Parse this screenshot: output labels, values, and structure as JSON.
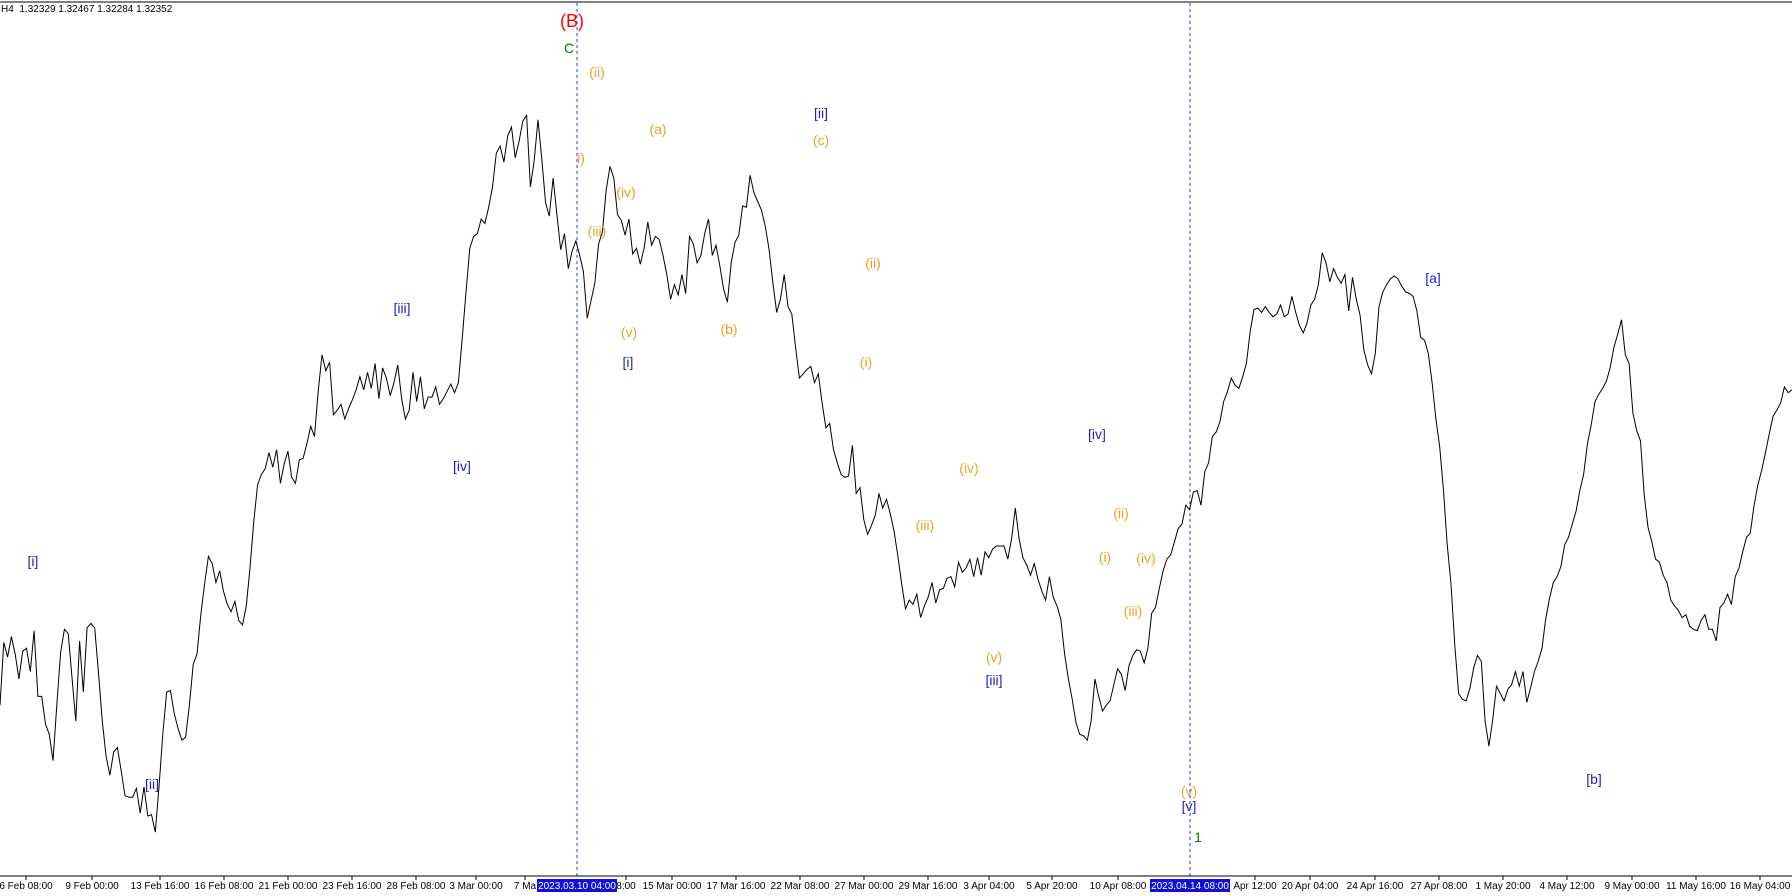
{
  "header": {
    "timeframe": "H4",
    "ohlc": "1.32329 1.32467 1.32284 1.32352"
  },
  "colors": {
    "price_line": "#000000",
    "vertical_line": "#1f3fd6",
    "axis_highlight": "#1010d8",
    "wave_red": "#ff0000",
    "wave_green": "#008000",
    "wave_blue": "#1f1fd0",
    "wave_orange": "#f0a020"
  },
  "chart_data": {
    "type": "line",
    "title": "",
    "series": [
      {
        "values": [
          1.2217,
          1.226,
          1.225,
          1.2264,
          1.2252,
          1.2235,
          1.2254,
          1.2256,
          1.224,
          1.2268,
          1.2223,
          1.2223,
          1.2204,
          1.2197,
          1.2179,
          1.2217,
          1.2253,
          1.2269,
          1.2266,
          1.2236,
          1.2206,
          1.2261,
          1.2226,
          1.227,
          1.2273,
          1.227,
          1.2239,
          1.2206,
          1.2182,
          1.2169,
          1.2185,
          1.2188,
          1.2172,
          1.2155,
          1.2154,
          1.2154,
          1.216,
          1.2143,
          1.2161,
          1.2141,
          1.2142,
          1.213,
          1.2162,
          1.2198,
          1.2226,
          1.2227,
          1.2211,
          1.2201,
          1.2193,
          1.2195,
          1.2217,
          1.2245,
          1.2252,
          1.2279,
          1.23,
          1.2319,
          1.2314,
          1.2301,
          1.2309,
          1.2295,
          1.2286,
          1.2281,
          1.2288,
          1.2275,
          1.2272,
          1.2285,
          1.2311,
          1.2343,
          1.2368,
          1.2375,
          1.2379,
          1.239,
          1.238,
          1.2392,
          1.2369,
          1.2382,
          1.2391,
          1.2373,
          1.2369,
          1.2385,
          1.2386,
          1.2396,
          1.2408,
          1.2401,
          1.2432,
          1.2457,
          1.2446,
          1.2452,
          1.2416,
          1.2419,
          1.2423,
          1.2413,
          1.242,
          1.2426,
          1.2433,
          1.2442,
          1.2433,
          1.2445,
          1.2434,
          1.2451,
          1.2427,
          1.2448,
          1.2441,
          1.2429,
          1.2438,
          1.245,
          1.2427,
          1.2413,
          1.2419,
          1.2445,
          1.2425,
          1.2442,
          1.242,
          1.2428,
          1.2428,
          1.2435,
          1.2423,
          1.2427,
          1.2432,
          1.2437,
          1.2431,
          1.2438,
          1.2468,
          1.25,
          1.253,
          1.2538,
          1.254,
          1.255,
          1.2547,
          1.2558,
          1.2572,
          1.2595,
          1.26,
          1.2589,
          1.2607,
          1.2613,
          1.2592,
          1.2603,
          1.2617,
          1.2621,
          1.2572,
          1.259,
          1.2618,
          1.2591,
          1.2561,
          1.2552,
          1.2578,
          1.2553,
          1.2529,
          1.254,
          1.2516,
          1.2528,
          1.2535,
          1.2525,
          1.2514,
          1.2482,
          1.2494,
          1.2506,
          1.2533,
          1.2541,
          1.257,
          1.2586,
          1.2578,
          1.2553,
          1.2549,
          1.2539,
          1.255,
          1.2526,
          1.253,
          1.2519,
          1.253,
          1.2548,
          1.2532,
          1.2538,
          1.2536,
          1.2525,
          1.2512,
          1.2495,
          1.2505,
          1.2498,
          1.2512,
          1.2499,
          1.2538,
          1.2533,
          1.252,
          1.2525,
          1.254,
          1.255,
          1.2525,
          1.2532,
          1.2518,
          1.2502,
          1.2493,
          1.252,
          1.2534,
          1.2539,
          1.2559,
          1.2558,
          1.258,
          1.2568,
          1.2562,
          1.2556,
          1.2545,
          1.2529,
          1.2506,
          1.2486,
          1.2495,
          1.2512,
          1.249,
          1.2485,
          1.2462,
          1.2441,
          1.2444,
          1.2447,
          1.2449,
          1.2438,
          1.2444,
          1.2424,
          1.2407,
          1.241,
          1.2392,
          1.2383,
          1.2375,
          1.2373,
          1.2374,
          1.2395,
          1.2362,
          1.2366,
          1.2344,
          1.2334,
          1.234,
          1.2347,
          1.2362,
          1.2352,
          1.2358,
          1.2348,
          1.2336,
          1.2319,
          1.23,
          1.2283,
          1.2289,
          1.2286,
          1.2293,
          1.2277,
          1.2285,
          1.2291,
          1.2301,
          1.2287,
          1.2296,
          1.2297,
          1.2304,
          1.2305,
          1.2298,
          1.2315,
          1.2308,
          1.2311,
          1.2317,
          1.2305,
          1.2318,
          1.2306,
          1.2322,
          1.2318,
          1.2324,
          1.2326,
          1.2326,
          1.2326,
          1.2317,
          1.2331,
          1.2352,
          1.2331,
          1.2318,
          1.2313,
          1.2306,
          1.2314,
          1.2303,
          1.2295,
          1.2289,
          1.2305,
          1.2291,
          1.2285,
          1.2276,
          1.2252,
          1.2235,
          1.2221,
          1.2205,
          1.2197,
          1.2196,
          1.2193,
          1.2206,
          1.2235,
          1.2223,
          1.2213,
          1.2217,
          1.222,
          1.2231,
          1.2242,
          1.2238,
          1.2227,
          1.2244,
          1.2251,
          1.2255,
          1.2254,
          1.2246,
          1.2256,
          1.228,
          1.2284,
          1.2297,
          1.2309,
          1.2317,
          1.232,
          1.2329,
          1.2338,
          1.2341,
          1.2354,
          1.2351,
          1.2363,
          1.2364,
          1.2354,
          1.2377,
          1.2383,
          1.2401,
          1.2404,
          1.2411,
          1.2425,
          1.2432,
          1.2441,
          1.2436,
          1.2434,
          1.2442,
          1.2451,
          1.2473,
          1.2488,
          1.2489,
          1.2486,
          1.249,
          1.2486,
          1.2483,
          1.2485,
          1.2491,
          1.2483,
          1.2485,
          1.2497,
          1.2486,
          1.2477,
          1.2472,
          1.2479,
          1.2491,
          1.2495,
          1.2505,
          1.2527,
          1.252,
          1.2507,
          1.2516,
          1.251,
          1.2506,
          1.2512,
          1.2487,
          1.251,
          1.2495,
          1.2484,
          1.246,
          1.245,
          1.2444,
          1.2458,
          1.249,
          1.25,
          1.2505,
          1.2509,
          1.2511,
          1.2509,
          1.2504,
          1.25,
          1.2499,
          1.2497,
          1.2487,
          1.2469,
          1.2467,
          1.2458,
          1.2438,
          1.2413,
          1.2394,
          1.2364,
          1.2327,
          1.23,
          1.2258,
          1.2225,
          1.2221,
          1.222,
          1.2229,
          1.2243,
          1.2251,
          1.2247,
          1.2206,
          1.2189,
          1.2207,
          1.223,
          1.2225,
          1.222,
          1.2228,
          1.2231,
          1.224,
          1.223,
          1.224,
          1.2219,
          1.2229,
          1.224,
          1.2247,
          1.2256,
          1.2276,
          1.229,
          1.2301,
          1.2305,
          1.2312,
          1.2327,
          1.2332,
          1.2341,
          1.235,
          1.2364,
          1.2375,
          1.2396,
          1.2409,
          1.2425,
          1.243,
          1.2434,
          1.2439,
          1.2448,
          1.2462,
          1.2471,
          1.2481,
          1.2457,
          1.2451,
          1.2417,
          1.2405,
          1.2398,
          1.2361,
          1.2339,
          1.2329,
          1.2317,
          1.2315,
          1.2306,
          1.2301,
          1.2289,
          1.2285,
          1.2282,
          1.2277,
          1.2279,
          1.2271,
          1.2269,
          1.2268,
          1.2275,
          1.2279,
          1.2269,
          1.2269,
          1.2261,
          1.2284,
          1.2287,
          1.2293,
          1.2286,
          1.2305,
          1.2311,
          1.2322,
          1.2332,
          1.2335,
          1.2354,
          1.2368,
          1.2378,
          1.239,
          1.2403,
          1.2415,
          1.2419,
          1.2424,
          1.2435,
          1.2431,
          1.2433
        ]
      }
    ],
    "x_labels": [
      "6 Feb 08:00",
      "9 Feb 00:00",
      "13 Feb 16:00",
      "16 Feb 08:00",
      "21 Feb 00:00",
      "23 Feb 16:00",
      "28 Feb 08:00",
      "3 Mar 00:00",
      "7 Ma",
      "8:00",
      "15 Mar 00:00",
      "17 Mar 16:00",
      "22 Mar 08:00",
      "27 Mar 00:00",
      "29 Mar 16:00",
      "3 Apr 04:00",
      "5 Apr 20:00",
      "10 Apr 08:00",
      "Apr 12:00",
      "20 Apr 04:00",
      "24 Apr 16:00",
      "27 Apr 08:00",
      "1 May 20:00",
      "4 May 12:00",
      "9 May 00:00",
      "11 May 16:00",
      "16 May 04:00"
    ],
    "highlight_labels": [
      "2023.03.10 04:00",
      "2023.04.14 08:00"
    ],
    "ylim": [
      1.21,
      1.27
    ],
    "grid": false,
    "legend": "none",
    "annotations": [
      {
        "text": "(B)",
        "color": "red",
        "size": "large"
      },
      {
        "text": "C",
        "color": "green"
      },
      {
        "text": "(ii)",
        "color": "orange"
      },
      {
        "text": "i)",
        "color": "orange"
      },
      {
        "text": "(iv)",
        "color": "orange"
      },
      {
        "text": "(iii)",
        "color": "orange"
      },
      {
        "text": "(v)",
        "color": "orange"
      },
      {
        "text": "[i]",
        "color": "blue"
      },
      {
        "text": "(a)",
        "color": "orange"
      },
      {
        "text": "(b)",
        "color": "orange"
      },
      {
        "text": "[ii]",
        "color": "blue"
      },
      {
        "text": "(c)",
        "color": "orange"
      },
      {
        "text": "(ii)",
        "color": "orange"
      },
      {
        "text": "(i)",
        "color": "orange"
      },
      {
        "text": "(iv)",
        "color": "orange"
      },
      {
        "text": "(iii)",
        "color": "orange"
      },
      {
        "text": "(v)",
        "color": "orange"
      },
      {
        "text": "[iii]",
        "color": "blue"
      },
      {
        "text": "[iv]",
        "color": "blue"
      },
      {
        "text": "(ii)",
        "color": "orange"
      },
      {
        "text": "(i)",
        "color": "orange"
      },
      {
        "text": "(iv)",
        "color": "orange"
      },
      {
        "text": "(iii)",
        "color": "orange"
      },
      {
        "text": "(v)",
        "color": "orange"
      },
      {
        "text": "[v]",
        "color": "blue"
      },
      {
        "text": "1",
        "color": "green"
      },
      {
        "text": "[a]",
        "color": "blue"
      },
      {
        "text": "[b]",
        "color": "blue"
      },
      {
        "text": "[i]",
        "color": "blue"
      },
      {
        "text": "[ii]",
        "color": "blue"
      },
      {
        "text": "[iii]",
        "color": "blue"
      },
      {
        "text": "[iv]",
        "color": "blue"
      }
    ]
  }
}
